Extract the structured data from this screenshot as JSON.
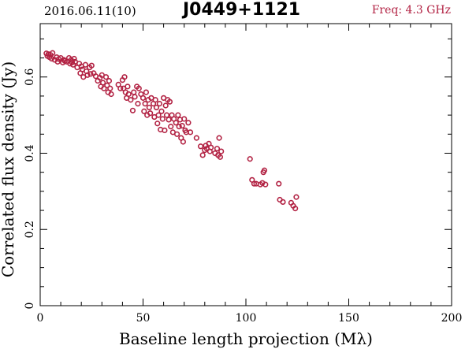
{
  "header": {
    "date": "2016.06.11(10)",
    "source": "J0449+1121",
    "freq": "Freq: 4.3 GHz"
  },
  "colors": {
    "points": "#b22243",
    "axes": "#000000"
  },
  "chart_data": {
    "type": "scatter",
    "title": "J0449+1121",
    "xlabel": "Baseline length projection (Mλ)",
    "ylabel": "Correlated flux density (Jy)",
    "xlim": [
      0,
      200
    ],
    "ylim": [
      0,
      0.74
    ],
    "xticks": [
      0,
      50,
      100,
      150,
      200
    ],
    "xtick_labels": [
      "0",
      "50",
      "100",
      "150",
      "200"
    ],
    "yticks": [
      0,
      0.2,
      0.4,
      0.6
    ],
    "ytick_labels": [
      "0",
      "0.2",
      "0.4",
      "0.6"
    ],
    "grid": false,
    "series": [
      {
        "marker": "open-circle",
        "points": [
          [
            3.0,
            0.662
          ],
          [
            3.5,
            0.655
          ],
          [
            4.0,
            0.66
          ],
          [
            4.5,
            0.652
          ],
          [
            5.0,
            0.658
          ],
          [
            5.5,
            0.648
          ],
          [
            6.0,
            0.663
          ],
          [
            7.0,
            0.645
          ],
          [
            8.0,
            0.652
          ],
          [
            8.5,
            0.64
          ],
          [
            9.0,
            0.647
          ],
          [
            10.0,
            0.65
          ],
          [
            11.0,
            0.638
          ],
          [
            11.5,
            0.645
          ],
          [
            12.0,
            0.642
          ],
          [
            13.0,
            0.64
          ],
          [
            14.0,
            0.65
          ],
          [
            14.5,
            0.635
          ],
          [
            15.0,
            0.645
          ],
          [
            15.5,
            0.638
          ],
          [
            16.0,
            0.632
          ],
          [
            16.5,
            0.648
          ],
          [
            17.0,
            0.64
          ],
          [
            18.0,
            0.625
          ],
          [
            19.0,
            0.635
          ],
          [
            19.5,
            0.61
          ],
          [
            20.0,
            0.628
          ],
          [
            20.5,
            0.62
          ],
          [
            21.0,
            0.6
          ],
          [
            22.0,
            0.632
          ],
          [
            22.5,
            0.615
          ],
          [
            23.0,
            0.605
          ],
          [
            24.0,
            0.625
          ],
          [
            24.5,
            0.608
          ],
          [
            25.0,
            0.63
          ],
          [
            26.0,
            0.61
          ],
          [
            27.0,
            0.602
          ],
          [
            28.0,
            0.59
          ],
          [
            29.0,
            0.598
          ],
          [
            29.5,
            0.575
          ],
          [
            30.0,
            0.605
          ],
          [
            30.5,
            0.585
          ],
          [
            31.0,
            0.57
          ],
          [
            32.0,
            0.6
          ],
          [
            32.5,
            0.578
          ],
          [
            33.0,
            0.56
          ],
          [
            33.5,
            0.59
          ],
          [
            34.0,
            0.57
          ],
          [
            34.5,
            0.555
          ],
          [
            38.0,
            0.58
          ],
          [
            39.0,
            0.57
          ],
          [
            40.0,
            0.592
          ],
          [
            40.5,
            0.57
          ],
          [
            41.0,
            0.6
          ],
          [
            41.5,
            0.56
          ],
          [
            42.0,
            0.545
          ],
          [
            42.5,
            0.575
          ],
          [
            43.0,
            0.555
          ],
          [
            44.0,
            0.54
          ],
          [
            45.0,
            0.512
          ],
          [
            45.5,
            0.56
          ],
          [
            46.0,
            0.548
          ],
          [
            47.0,
            0.575
          ],
          [
            47.5,
            0.53
          ],
          [
            48.0,
            0.57
          ],
          [
            49.0,
            0.555
          ],
          [
            50.0,
            0.545
          ],
          [
            50.5,
            0.51
          ],
          [
            51.0,
            0.53
          ],
          [
            51.5,
            0.56
          ],
          [
            52.0,
            0.5
          ],
          [
            52.5,
            0.54
          ],
          [
            53.0,
            0.52
          ],
          [
            53.5,
            0.505
          ],
          [
            54.0,
            0.545
          ],
          [
            55.0,
            0.53
          ],
          [
            55.5,
            0.495
          ],
          [
            56.0,
            0.54
          ],
          [
            56.5,
            0.52
          ],
          [
            57.0,
            0.478
          ],
          [
            57.5,
            0.5
          ],
          [
            58.0,
            0.53
          ],
          [
            58.5,
            0.462
          ],
          [
            59.0,
            0.51
          ],
          [
            59.5,
            0.49
          ],
          [
            60.0,
            0.545
          ],
          [
            60.5,
            0.46
          ],
          [
            61.0,
            0.525
          ],
          [
            61.5,
            0.5
          ],
          [
            62.0,
            0.54
          ],
          [
            62.5,
            0.488
          ],
          [
            63.0,
            0.535
          ],
          [
            63.5,
            0.47
          ],
          [
            64.0,
            0.5
          ],
          [
            64.5,
            0.455
          ],
          [
            65.0,
            0.49
          ],
          [
            66.0,
            0.48
          ],
          [
            66.5,
            0.45
          ],
          [
            67.0,
            0.5
          ],
          [
            67.5,
            0.47
          ],
          [
            68.0,
            0.488
          ],
          [
            68.5,
            0.44
          ],
          [
            69.0,
            0.472
          ],
          [
            69.5,
            0.43
          ],
          [
            70.0,
            0.49
          ],
          [
            70.5,
            0.46
          ],
          [
            71.0,
            0.455
          ],
          [
            72.0,
            0.48
          ],
          [
            73.0,
            0.455
          ],
          [
            76.0,
            0.44
          ],
          [
            78.0,
            0.418
          ],
          [
            79.0,
            0.395
          ],
          [
            80.0,
            0.408
          ],
          [
            80.5,
            0.42
          ],
          [
            81.0,
            0.412
          ],
          [
            82.0,
            0.425
          ],
          [
            82.5,
            0.405
          ],
          [
            83.0,
            0.415
          ],
          [
            85.0,
            0.4
          ],
          [
            86.0,
            0.412
          ],
          [
            86.5,
            0.395
          ],
          [
            87.0,
            0.44
          ],
          [
            87.5,
            0.39
          ],
          [
            88.0,
            0.405
          ],
          [
            102.0,
            0.385
          ],
          [
            103.0,
            0.33
          ],
          [
            104.0,
            0.32
          ],
          [
            105.0,
            0.32
          ],
          [
            107.0,
            0.318
          ],
          [
            108.0,
            0.322
          ],
          [
            108.5,
            0.35
          ],
          [
            109.0,
            0.355
          ],
          [
            109.5,
            0.318
          ],
          [
            116.0,
            0.32
          ],
          [
            116.5,
            0.278
          ],
          [
            118.0,
            0.272
          ],
          [
            122.0,
            0.27
          ],
          [
            123.0,
            0.262
          ],
          [
            124.0,
            0.255
          ],
          [
            124.5,
            0.285
          ]
        ]
      }
    ]
  }
}
